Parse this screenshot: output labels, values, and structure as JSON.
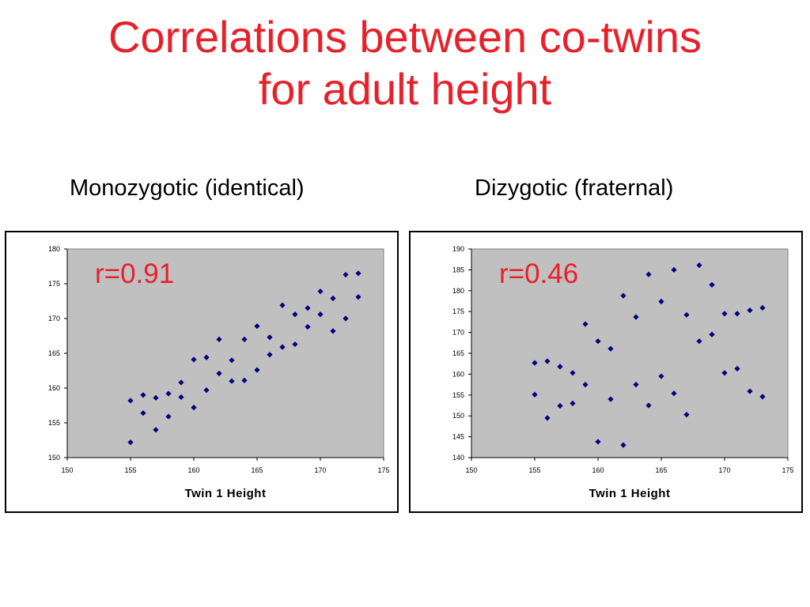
{
  "title": {
    "line1": "Correlations between co-twins",
    "line2": "for adult height"
  },
  "subtitles": {
    "left": "Monozygotic (identical)",
    "right": "Dizygotic (fraternal)"
  },
  "colors": {
    "title": "#e8202a",
    "annotation": "#e8202a",
    "plot_area": "#c0c0c0",
    "marker": "#000080"
  },
  "chart_data": [
    {
      "type": "scatter",
      "title": "",
      "xlabel": "Twin 1 Height",
      "ylabel": "",
      "xlim": [
        150,
        175
      ],
      "ylim": [
        150,
        180
      ],
      "xticks": [
        150,
        155,
        160,
        165,
        170,
        175
      ],
      "yticks": [
        150,
        155,
        160,
        165,
        170,
        175,
        180
      ],
      "annotation": "r=0.91",
      "grid": false,
      "marker": "diamond",
      "points": [
        [
          155,
          158.2
        ],
        [
          155,
          152.2
        ],
        [
          156,
          159
        ],
        [
          156,
          156.4
        ],
        [
          157,
          158.6
        ],
        [
          157,
          154
        ],
        [
          158,
          159.2
        ],
        [
          158,
          155.9
        ],
        [
          159,
          160.8
        ],
        [
          159,
          158.7
        ],
        [
          160,
          164.1
        ],
        [
          160,
          157.2
        ],
        [
          161,
          164.4
        ],
        [
          161,
          159.7
        ],
        [
          162,
          167
        ],
        [
          162,
          162.1
        ],
        [
          163,
          164
        ],
        [
          163,
          161
        ],
        [
          164,
          167
        ],
        [
          164,
          161.1
        ],
        [
          165,
          168.9
        ],
        [
          165,
          162.6
        ],
        [
          166,
          167.3
        ],
        [
          166,
          164.8
        ],
        [
          167,
          171.9
        ],
        [
          167,
          165.9
        ],
        [
          168,
          170.6
        ],
        [
          168,
          166.3
        ],
        [
          169,
          171.5
        ],
        [
          169,
          168.8
        ],
        [
          170,
          173.9
        ],
        [
          170,
          170.6
        ],
        [
          171,
          172.9
        ],
        [
          171,
          168.2
        ],
        [
          172,
          176.3
        ],
        [
          172,
          170
        ],
        [
          173,
          176.5
        ],
        [
          173,
          173.1
        ]
      ]
    },
    {
      "type": "scatter",
      "title": "",
      "xlabel": "Twin 1 Height",
      "ylabel": "",
      "xlim": [
        150,
        175
      ],
      "ylim": [
        140,
        190
      ],
      "xticks": [
        150,
        155,
        160,
        165,
        170,
        175
      ],
      "yticks": [
        140,
        145,
        150,
        155,
        160,
        165,
        170,
        175,
        180,
        185,
        190
      ],
      "annotation": "r=0.46",
      "grid": false,
      "marker": "diamond",
      "points": [
        [
          155,
          162.7
        ],
        [
          155,
          155.1
        ],
        [
          156,
          163.1
        ],
        [
          156,
          149.5
        ],
        [
          157,
          161.8
        ],
        [
          157,
          152.4
        ],
        [
          158,
          160.3
        ],
        [
          158,
          153
        ],
        [
          159,
          172
        ],
        [
          159,
          157.5
        ],
        [
          160,
          167.9
        ],
        [
          160,
          143.8
        ],
        [
          161,
          166.1
        ],
        [
          161,
          154
        ],
        [
          162,
          178.8
        ],
        [
          162,
          143
        ],
        [
          163,
          173.7
        ],
        [
          163,
          157.5
        ],
        [
          164,
          183.9
        ],
        [
          164,
          152.5
        ],
        [
          165,
          177.4
        ],
        [
          165,
          159.5
        ],
        [
          166,
          185
        ],
        [
          166,
          155.4
        ],
        [
          167,
          174.2
        ],
        [
          167,
          150.3
        ],
        [
          168,
          186.1
        ],
        [
          168,
          167.9
        ],
        [
          169,
          181.4
        ],
        [
          169,
          169.5
        ],
        [
          170,
          174.5
        ],
        [
          170,
          160.3
        ],
        [
          171,
          174.5
        ],
        [
          171,
          161.3
        ],
        [
          172,
          175.3
        ],
        [
          172,
          155.9
        ],
        [
          173,
          175.9
        ],
        [
          173,
          154.6
        ]
      ]
    }
  ]
}
